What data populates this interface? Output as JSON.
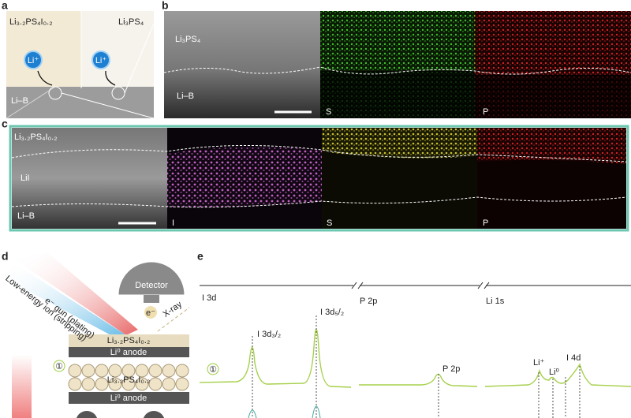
{
  "panel_a": {
    "label": "a",
    "left_material": "Li₃.₂PS₄I₀.₂",
    "right_material": "Li₃PS₄",
    "ion_left": "Li⁺",
    "ion_right": "Li⁺",
    "substrate": "Li–B"
  },
  "panel_b": {
    "label": "b",
    "top_layer": "Li₃PS₄",
    "bottom_layer": "Li–B",
    "map_1": "S",
    "map_2": "P"
  },
  "panel_c": {
    "label": "c",
    "top_layer": "Li₃.₂PS₄I₀.₂",
    "middle_layer": "LiI",
    "bottom_layer": "Li–B",
    "map_1": "I",
    "map_2": "S",
    "map_3": "P"
  },
  "panel_d": {
    "label": "d",
    "detector": "Detector",
    "electron_gun": "e⁻ gun (plating)",
    "ion_beam": "Low-energy ion (stripping)",
    "xray": "X-ray",
    "electron": "e⁻",
    "layer_1": "Li₃.₂PS₄I₀.₂",
    "anode_1": "Li⁰ anode",
    "step_marker": "①",
    "layer_2": "Li₃.₂PS₄I₀.₂",
    "anode_2": "Li⁰ anode"
  },
  "panel_e": {
    "label": "e",
    "region_1": "I 3d",
    "region_2": "P 2p",
    "region_3": "Li 1s",
    "peak_1": "I 3d₃/₂",
    "peak_2": "I 3d₅/₂",
    "peak_3": "P 2p",
    "peak_4": "Li⁺",
    "peak_5": "Li⁰",
    "peak_6": "I 4d",
    "step_marker": "①"
  }
}
